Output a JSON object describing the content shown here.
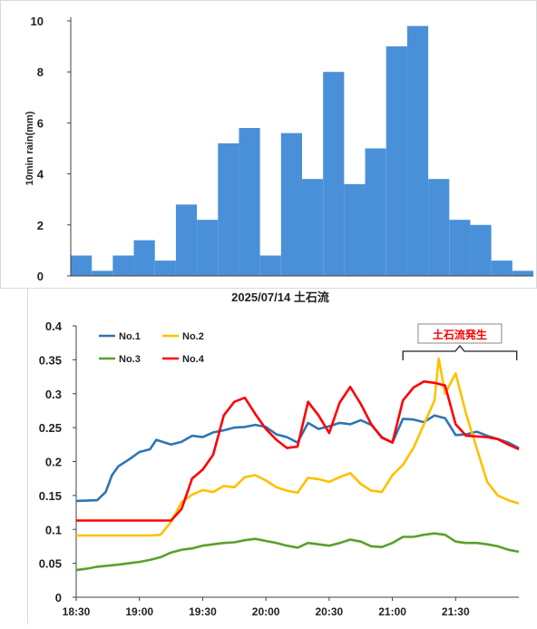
{
  "colors": {
    "bar": "#4a90d9",
    "axis": "#404040",
    "no1": "#2e75b6",
    "no2": "#ffc000",
    "no3": "#5aa02c",
    "no4": "#ff0000",
    "annotation": "#ff0000"
  },
  "chart_data": [
    {
      "type": "bar",
      "title": "",
      "xlabel": "",
      "ylabel": "10min rain(mm)",
      "ylim": [
        0,
        10
      ],
      "yticks": [
        "0",
        "2",
        "4",
        "6",
        "8",
        "10"
      ],
      "grid": false,
      "values": [
        0.8,
        0.2,
        0.8,
        1.4,
        0.6,
        2.8,
        2.2,
        5.2,
        5.8,
        0.8,
        5.6,
        3.8,
        8.0,
        3.6,
        5.0,
        9.0,
        9.8,
        3.8,
        2.2,
        2.0,
        0.6,
        0.2
      ]
    },
    {
      "type": "line",
      "title": "2025/07/14 土石流",
      "xlabel": "",
      "ylabel": "",
      "xlim": [
        "18:30",
        "22:00"
      ],
      "ylim": [
        0,
        0.4
      ],
      "xticks": [
        "18:30",
        "19:00",
        "19:30",
        "20:00",
        "20:30",
        "21:00",
        "21:30"
      ],
      "yticks": [
        "0",
        "0.05",
        "0.1",
        "0.15",
        "0.2",
        "0.25",
        "0.3",
        "0.35",
        "0.4"
      ],
      "grid": false,
      "legend_position": "top-left",
      "annotation": {
        "text": "土石流発生",
        "x_start": "21:05",
        "x_end": "21:59"
      },
      "series": [
        {
          "name": "No.1",
          "x": [
            "18:30",
            "18:40",
            "18:44",
            "18:47",
            "18:50",
            "18:55",
            "19:00",
            "19:05",
            "19:08",
            "19:15",
            "19:20",
            "19:25",
            "19:30",
            "19:35",
            "19:40",
            "19:45",
            "19:50",
            "19:55",
            "20:00",
            "20:05",
            "20:10",
            "20:15",
            "20:20",
            "20:25",
            "20:30",
            "20:35",
            "20:40",
            "20:45",
            "20:50",
            "20:55",
            "21:00",
            "21:05",
            "21:10",
            "21:15",
            "21:20",
            "21:25",
            "21:30",
            "21:35",
            "21:40",
            "21:45",
            "21:50",
            "21:55",
            "22:00"
          ],
          "y": [
            0.142,
            0.143,
            0.155,
            0.18,
            0.193,
            0.203,
            0.214,
            0.218,
            0.232,
            0.225,
            0.229,
            0.238,
            0.236,
            0.243,
            0.246,
            0.25,
            0.251,
            0.254,
            0.251,
            0.24,
            0.236,
            0.228,
            0.257,
            0.248,
            0.252,
            0.257,
            0.255,
            0.261,
            0.254,
            0.236,
            0.228,
            0.263,
            0.262,
            0.258,
            0.268,
            0.264,
            0.239,
            0.24,
            0.244,
            0.238,
            0.233,
            0.228,
            0.22
          ]
        },
        {
          "name": "No.2",
          "x": [
            "18:30",
            "18:40",
            "18:50",
            "19:00",
            "19:05",
            "19:10",
            "19:15",
            "19:20",
            "19:25",
            "19:30",
            "19:35",
            "19:40",
            "19:45",
            "19:50",
            "19:55",
            "20:00",
            "20:05",
            "20:10",
            "20:15",
            "20:20",
            "20:25",
            "20:30",
            "20:35",
            "20:40",
            "20:45",
            "20:50",
            "20:55",
            "21:00",
            "21:05",
            "21:10",
            "21:15",
            "21:20",
            "21:22",
            "21:25",
            "21:30",
            "21:35",
            "21:40",
            "21:45",
            "21:50",
            "21:55",
            "22:00"
          ],
          "y": [
            0.091,
            0.091,
            0.091,
            0.091,
            0.091,
            0.092,
            0.111,
            0.14,
            0.151,
            0.158,
            0.155,
            0.164,
            0.162,
            0.177,
            0.18,
            0.172,
            0.162,
            0.157,
            0.154,
            0.176,
            0.174,
            0.17,
            0.177,
            0.183,
            0.167,
            0.157,
            0.155,
            0.18,
            0.195,
            0.22,
            0.255,
            0.29,
            0.352,
            0.3,
            0.33,
            0.27,
            0.22,
            0.17,
            0.15,
            0.143,
            0.138
          ]
        },
        {
          "name": "No.3",
          "x": [
            "18:30",
            "18:35",
            "18:40",
            "18:50",
            "19:00",
            "19:05",
            "19:10",
            "19:15",
            "19:20",
            "19:25",
            "19:30",
            "19:40",
            "19:45",
            "19:50",
            "19:55",
            "20:00",
            "20:05",
            "20:10",
            "20:15",
            "20:20",
            "20:25",
            "20:30",
            "20:35",
            "20:40",
            "20:45",
            "20:50",
            "20:55",
            "21:00",
            "21:05",
            "21:10",
            "21:15",
            "21:20",
            "21:25",
            "21:30",
            "21:35",
            "21:40",
            "21:45",
            "21:50",
            "21:55",
            "22:00"
          ],
          "y": [
            0.04,
            0.042,
            0.045,
            0.048,
            0.052,
            0.055,
            0.059,
            0.066,
            0.07,
            0.072,
            0.076,
            0.08,
            0.081,
            0.084,
            0.086,
            0.083,
            0.08,
            0.076,
            0.073,
            0.08,
            0.078,
            0.076,
            0.08,
            0.085,
            0.082,
            0.075,
            0.074,
            0.08,
            0.089,
            0.089,
            0.092,
            0.094,
            0.092,
            0.082,
            0.08,
            0.08,
            0.078,
            0.075,
            0.07,
            0.067
          ]
        },
        {
          "name": "No.4",
          "x": [
            "18:30",
            "18:40",
            "18:50",
            "19:00",
            "19:05",
            "19:10",
            "19:15",
            "19:20",
            "19:25",
            "19:30",
            "19:35",
            "19:40",
            "19:45",
            "19:50",
            "19:55",
            "20:00",
            "20:05",
            "20:10",
            "20:15",
            "20:20",
            "20:25",
            "20:30",
            "20:35",
            "20:40",
            "20:45",
            "20:50",
            "20:55",
            "21:00",
            "21:05",
            "21:10",
            "21:15",
            "21:20",
            "21:25",
            "21:30",
            "21:35",
            "21:40",
            "21:45",
            "21:50",
            "21:55",
            "22:00"
          ],
          "y": [
            0.113,
            0.113,
            0.113,
            0.113,
            0.113,
            0.113,
            0.113,
            0.13,
            0.175,
            0.188,
            0.21,
            0.268,
            0.288,
            0.294,
            0.27,
            0.248,
            0.232,
            0.22,
            0.222,
            0.288,
            0.268,
            0.242,
            0.287,
            0.31,
            0.285,
            0.255,
            0.235,
            0.228,
            0.29,
            0.309,
            0.318,
            0.316,
            0.312,
            0.255,
            0.238,
            0.237,
            0.236,
            0.233,
            0.225,
            0.218
          ]
        }
      ]
    }
  ]
}
